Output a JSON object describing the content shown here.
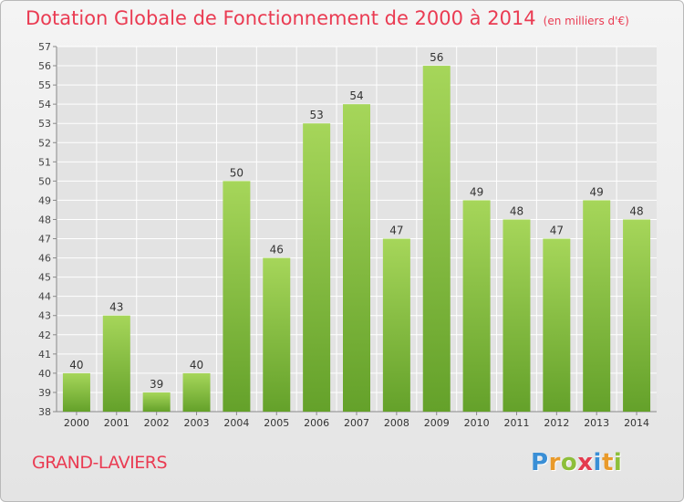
{
  "title": "Dotation Globale de Fonctionnement de 2000 à 2014",
  "subtitle": "(en milliers d'€)",
  "commune": "GRAND-LAVIERS",
  "logo": {
    "text": "Proxiti",
    "letters": [
      {
        "ch": "P",
        "color": "#3a8fd6"
      },
      {
        "ch": "r",
        "color": "#e99a2a"
      },
      {
        "ch": "o",
        "color": "#8dbf3a"
      },
      {
        "ch": "x",
        "color": "#e43a4e"
      },
      {
        "ch": "i",
        "color": "#3a8fd6"
      },
      {
        "ch": "t",
        "color": "#e99a2a"
      },
      {
        "ch": "i",
        "color": "#8dbf3a"
      }
    ]
  },
  "colors": {
    "bar_top": "#a6d65a",
    "bar_bottom": "#64a12a",
    "title": "#ea3b52",
    "grid": "#ffffff"
  },
  "chart_data": {
    "type": "bar",
    "categories": [
      "2000",
      "2001",
      "2002",
      "2003",
      "2004",
      "2005",
      "2006",
      "2007",
      "2008",
      "2009",
      "2010",
      "2011",
      "2012",
      "2013",
      "2014"
    ],
    "values": [
      40,
      43,
      39,
      40,
      50,
      46,
      53,
      54,
      47,
      56,
      49,
      48,
      47,
      49,
      48
    ],
    "ylim": [
      38,
      57
    ],
    "yticks": [
      38,
      39,
      40,
      41,
      42,
      43,
      44,
      45,
      46,
      47,
      48,
      49,
      50,
      51,
      52,
      53,
      54,
      55,
      56,
      57
    ],
    "grid": true,
    "xlabel": "",
    "ylabel": ""
  }
}
